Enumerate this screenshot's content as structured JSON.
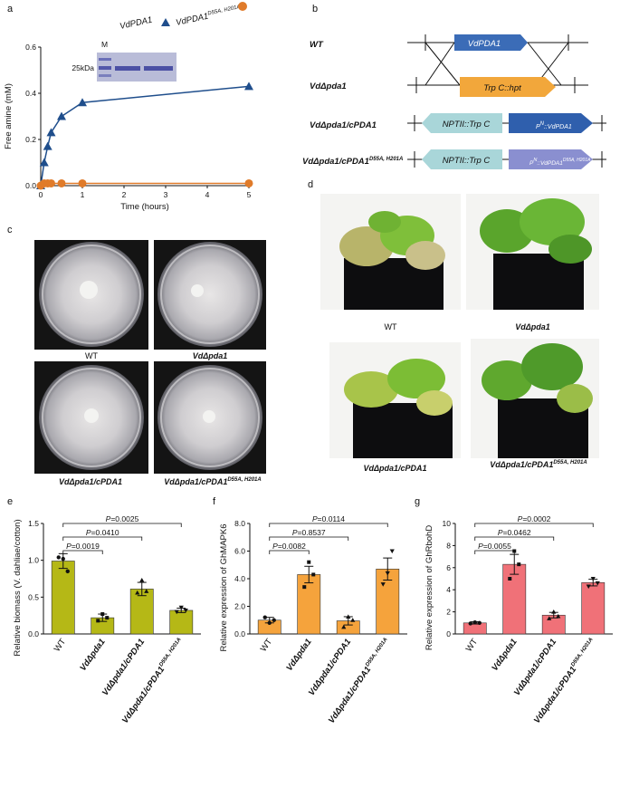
{
  "panels": {
    "a": "a",
    "b": "b",
    "c": "c",
    "d": "d",
    "e": "e",
    "f": "f",
    "g": "g"
  },
  "panel_a": {
    "chart_data": {
      "type": "line",
      "xlabel": "Time (hours)",
      "ylabel": "Free amine (mM)",
      "xlim": [
        0,
        5
      ],
      "ylim": [
        0,
        0.6
      ],
      "xticks": [
        "0",
        "1",
        "2",
        "3",
        "4",
        "5"
      ],
      "yticks": [
        "0.0",
        "0.2",
        "0.4",
        "0.6"
      ],
      "series": [
        {
          "name": "VdPDA1",
          "marker": "triangle",
          "color": "#1f4e8c",
          "x": [
            0,
            0.083,
            0.167,
            0.25,
            0.5,
            1,
            5
          ],
          "y": [
            0,
            0.1,
            0.17,
            0.23,
            0.3,
            0.36,
            0.43
          ]
        },
        {
          "name": "VdPDA1",
          "name_sup": "D55A, H201A",
          "marker": "circle",
          "color": "#e07b2a",
          "x": [
            0,
            0.083,
            0.167,
            0.25,
            0.5,
            1,
            5
          ],
          "y": [
            0,
            0.01,
            0.01,
            0.01,
            0.01,
            0.01,
            0.01
          ]
        }
      ]
    },
    "gel": {
      "lane_m": "M",
      "marker_kda": "25kDa"
    }
  },
  "panel_b": {
    "rows": [
      {
        "label": "WT",
        "gene": "VdPDA1"
      },
      {
        "label": "VdΔpda1",
        "gene": "Trp C::hpt"
      },
      {
        "label": "VdΔpda1/cPDA1",
        "cassette": "NPTII::Trp C",
        "promoter": "P",
        "promoter_sup": "N",
        "gene": "::VdPDA1"
      },
      {
        "label": "VdΔpda1/cPDA1",
        "label_sup": "D55A, H201A",
        "cassette": "NPTII::Trp C",
        "promoter": "P",
        "promoter_sup": "N",
        "gene": "::VdPDA1",
        "gene_sup": "D55A, H201A"
      }
    ],
    "colors": {
      "wt_gene": "#3b6cb7",
      "hpt": "#f2a73b",
      "cassette": "#a9d6d9",
      "comp": "#2f5fad",
      "mut": "#8a8fd0"
    }
  },
  "panel_c": {
    "labels": [
      "WT",
      "VdΔpda1",
      "VdΔpda1/cPDA1",
      "VdΔpda1/cPDA1"
    ],
    "label4_sup": "D55A, H201A"
  },
  "panel_d": {
    "labels": [
      "WT",
      "VdΔpda1",
      "VdΔpda1/cPDA1",
      "VdΔpda1/cPDA1"
    ],
    "label4_sup": "D55A, H201A"
  },
  "panel_e": {
    "chart_data": {
      "type": "bar",
      "ylabel": "Relative biomass (V. dahliae/cotton)",
      "ylim": [
        0,
        1.5
      ],
      "yticks": [
        "0.0",
        "0.5",
        "1.0",
        "1.5"
      ],
      "categories": [
        "WT",
        "VdΔpda1",
        "VdΔpda1/cPDA1",
        "VdΔpda1/cPDA1"
      ],
      "category4_sup": "D55A, H201A",
      "values": [
        0.99,
        0.22,
        0.61,
        0.32
      ],
      "errors": [
        0.1,
        0.05,
        0.09,
        0.03
      ],
      "points": [
        [
          1.04,
          1.02,
          0.85
        ],
        [
          0.18,
          0.27,
          0.22
        ],
        [
          0.56,
          0.73,
          0.58
        ],
        [
          0.3,
          0.36,
          0.32
        ]
      ],
      "color": "#b5b816",
      "pvalues": [
        "P=0.0019",
        "P=0.0410",
        "P=0.0025"
      ]
    }
  },
  "panel_f": {
    "chart_data": {
      "type": "bar",
      "ylabel": "Relative expression of GhMAPK6",
      "ylim": [
        0,
        8
      ],
      "yticks": [
        "0.0",
        "2.0",
        "4.0",
        "6.0",
        "8.0"
      ],
      "categories": [
        "WT",
        "VdΔpda1",
        "VdΔpda1/cPDA1",
        "VdΔpda1/cPDA1"
      ],
      "category4_sup": "D55A, H201A",
      "values": [
        1.0,
        4.3,
        0.95,
        4.7
      ],
      "errors": [
        0.2,
        0.6,
        0.3,
        0.8
      ],
      "points": [
        [
          1.2,
          0.8,
          1.0
        ],
        [
          3.4,
          5.2,
          4.3
        ],
        [
          0.5,
          1.25,
          1.0
        ],
        [
          3.6,
          4.4,
          6.0
        ]
      ],
      "color": "#f5a33c",
      "pvalues": [
        "P=0.0082",
        "P=0.8537",
        "P=0.0114"
      ]
    }
  },
  "panel_g": {
    "chart_data": {
      "type": "bar",
      "ylabel": "Relative expression of GhRbohD",
      "ylim": [
        0,
        10
      ],
      "yticks": [
        "0",
        "2",
        "4",
        "6",
        "8",
        "10"
      ],
      "categories": [
        "WT",
        "VdΔpda1",
        "VdΔpda1/cPDA1",
        "VdΔpda1/cPDA1"
      ],
      "category4_sup": "D55A, H201A",
      "values": [
        1.0,
        6.3,
        1.7,
        4.65
      ],
      "errors": [
        0.1,
        0.9,
        0.25,
        0.3
      ],
      "points": [
        [
          0.95,
          1.05,
          1.0
        ],
        [
          5.0,
          7.5,
          6.3
        ],
        [
          1.4,
          2.0,
          1.6
        ],
        [
          4.3,
          5.0,
          4.6
        ]
      ],
      "color": "#f07178",
      "pvalues": [
        "P=0.0055",
        "P=0.0462",
        "P=0.0002"
      ]
    }
  }
}
